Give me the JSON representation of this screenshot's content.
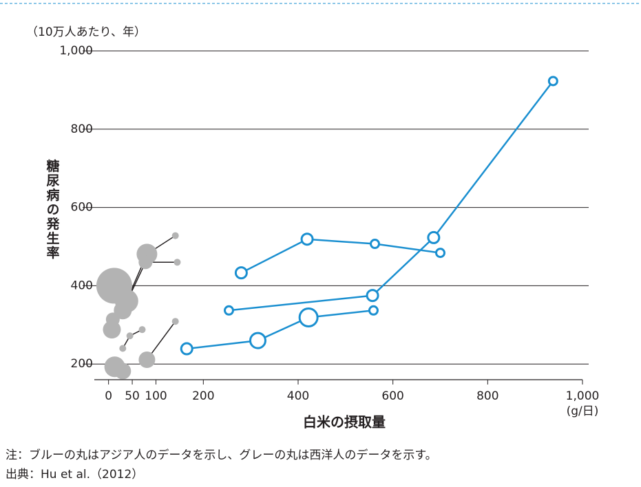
{
  "chart_data": {
    "type": "bubble-line",
    "y_unit": "（10万人あたり、年）",
    "y_label": "糖尿病の発生率",
    "x_label": "白米の摂取量",
    "x_unit": "(g/日)",
    "note": "注：ブルーの丸はアジア人のデータを示し、グレーの丸は西洋人のデータを示す。",
    "source": "出典：Hu et al.（2012）",
    "xlim": [
      -30,
      1000
    ],
    "ylim": [
      160,
      1000
    ],
    "xticks": [
      0,
      50,
      100,
      200,
      400,
      600,
      800,
      {
        "value": 1000,
        "label": "1,000"
      }
    ],
    "yticks": [
      200,
      400,
      600,
      800,
      {
        "value": 1000,
        "label": "1,000"
      }
    ],
    "grid": true,
    "series": [
      {
        "color": "#1a8fd0",
        "filled": false,
        "x": [
          165,
          315,
          422,
          559
        ],
        "values": [
          239,
          260,
          319,
          337
        ],
        "sizes": [
          8,
          11,
          13,
          6
        ]
      },
      {
        "color": "#1a8fd0",
        "filled": false,
        "x": [
          254,
          557,
          686,
          938
        ],
        "values": [
          337,
          375,
          523,
          923
        ],
        "sizes": [
          6,
          8,
          8,
          6
        ]
      },
      {
        "color": "#1a8fd0",
        "filled": false,
        "x": [
          280,
          419,
          562,
          700
        ],
        "values": [
          433,
          519,
          507,
          484
        ],
        "sizes": [
          8,
          8,
          6,
          6
        ]
      },
      {
        "color": "#b3b3b3",
        "filled": true,
        "x": [
          38,
          81,
          141
        ],
        "values": [
          361,
          481,
          528
        ],
        "sizes": [
          17,
          15,
          5
        ]
      },
      {
        "color": "#b3b3b3",
        "filled": true,
        "x": [
          30,
          78,
          145
        ],
        "values": [
          337,
          460,
          460
        ],
        "sizes": [
          13,
          10,
          5
        ]
      },
      {
        "color": "#b3b3b3",
        "filled": true,
        "x": [
          30,
          45,
          71
        ],
        "values": [
          240,
          272,
          288
        ],
        "sizes": [
          5,
          5,
          5
        ]
      },
      {
        "color": "#b3b3b3",
        "filled": true,
        "x": [
          81,
          141
        ],
        "values": [
          211,
          309
        ],
        "sizes": [
          12,
          5
        ]
      },
      {
        "color": "#b3b3b3",
        "filled": true,
        "x": [
          12
        ],
        "values": [
          400
        ],
        "sizes": [
          26
        ]
      },
      {
        "color": "#b3b3b3",
        "filled": true,
        "x": [
          9
        ],
        "values": [
          314
        ],
        "sizes": [
          10
        ]
      },
      {
        "color": "#b3b3b3",
        "filled": true,
        "x": [
          7
        ],
        "values": [
          288
        ],
        "sizes": [
          13
        ]
      },
      {
        "color": "#b3b3b3",
        "filled": true,
        "x": [
          13
        ],
        "values": [
          193
        ],
        "sizes": [
          15
        ]
      },
      {
        "color": "#b3b3b3",
        "filled": true,
        "x": [
          30
        ],
        "values": [
          182
        ],
        "sizes": [
          12
        ]
      }
    ]
  }
}
